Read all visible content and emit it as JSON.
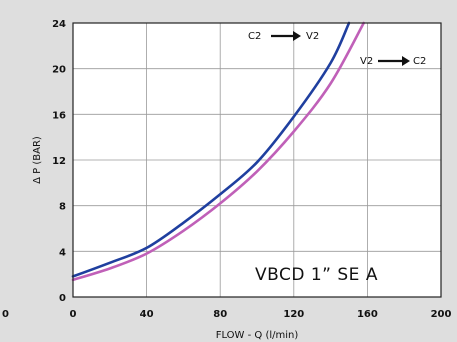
{
  "chart_data": {
    "type": "line",
    "xlabel": "FLOW - Q (l/min)",
    "ylabel": "Δ P (BAR)",
    "xlim": [
      0,
      200
    ],
    "ylim": [
      0,
      24
    ],
    "x_ticks": [
      "0",
      "40",
      "80",
      "120",
      "160",
      "200"
    ],
    "y_ticks": [
      "0",
      "4",
      "8",
      "12",
      "16",
      "20",
      "24"
    ],
    "left_edge_label": "0",
    "grid": true,
    "model_label": "VBCD 1” SE A",
    "series": [
      {
        "name": "C2 → V2",
        "color": "#1f3f9f",
        "points": [
          [
            0,
            1.8
          ],
          [
            20,
            3.0
          ],
          [
            40,
            4.3
          ],
          [
            60,
            6.5
          ],
          [
            80,
            9.0
          ],
          [
            100,
            11.8
          ],
          [
            120,
            15.8
          ],
          [
            140,
            20.5
          ],
          [
            150,
            24.0
          ]
        ]
      },
      {
        "name": "V2 → C2",
        "color": "#c060b8",
        "points": [
          [
            0,
            1.5
          ],
          [
            20,
            2.5
          ],
          [
            40,
            3.8
          ],
          [
            60,
            5.8
          ],
          [
            80,
            8.2
          ],
          [
            100,
            11.0
          ],
          [
            120,
            14.5
          ],
          [
            140,
            18.7
          ],
          [
            158,
            24.0
          ]
        ]
      }
    ],
    "annotations": [
      {
        "from": "C2",
        "to": "V2"
      },
      {
        "from": "V2",
        "to": "C2"
      }
    ]
  }
}
